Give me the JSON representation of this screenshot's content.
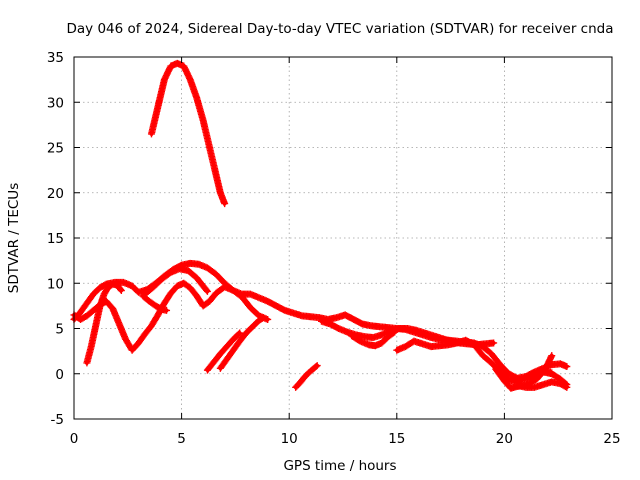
{
  "chart_data": {
    "type": "scatter",
    "title": "Day 046 of 2024, Sidereal Day-to-day VTEC variation (SDTVAR) for receiver cnda",
    "xlabel": "GPS time / hours",
    "ylabel": "SDTVAR / TECUs",
    "xlim": [
      0,
      25
    ],
    "ylim": [
      -5,
      35
    ],
    "xticks": [
      0,
      5,
      10,
      15,
      20,
      25
    ],
    "yticks": [
      -5,
      0,
      5,
      10,
      15,
      20,
      25,
      30,
      35
    ],
    "grid": true,
    "marker": "+",
    "color": "#ff0000",
    "series": [
      {
        "name": "arc-1",
        "points": [
          [
            3.6,
            26.5
          ],
          [
            3.8,
            28.5
          ],
          [
            4.0,
            30.5
          ],
          [
            4.2,
            32.5
          ],
          [
            4.5,
            34.0
          ],
          [
            4.8,
            34.3
          ],
          [
            5.1,
            34.0
          ],
          [
            5.4,
            32.5
          ],
          [
            5.7,
            30.5
          ],
          [
            6.0,
            28.0
          ],
          [
            6.3,
            25.0
          ],
          [
            6.6,
            22.0
          ],
          [
            6.8,
            20.0
          ],
          [
            7.0,
            18.8
          ]
        ]
      },
      {
        "name": "arc-2",
        "points": [
          [
            0.0,
            6.0
          ],
          [
            0.3,
            6.8
          ],
          [
            0.6,
            7.8
          ],
          [
            0.9,
            8.8
          ],
          [
            1.2,
            9.5
          ],
          [
            1.5,
            9.9
          ],
          [
            1.9,
            10.1
          ],
          [
            2.3,
            10.1
          ],
          [
            2.7,
            9.7
          ],
          [
            3.0,
            9.0
          ],
          [
            3.4,
            9.3
          ],
          [
            3.8,
            10.0
          ],
          [
            4.2,
            10.8
          ],
          [
            4.6,
            11.5
          ],
          [
            5.0,
            12.0
          ],
          [
            5.4,
            12.2
          ],
          [
            5.8,
            12.1
          ],
          [
            6.2,
            11.7
          ],
          [
            6.6,
            11.0
          ],
          [
            7.0,
            10.0
          ],
          [
            7.4,
            9.2
          ],
          [
            7.8,
            8.8
          ],
          [
            8.2,
            8.8
          ],
          [
            8.6,
            8.4
          ],
          [
            9.0,
            8.0
          ],
          [
            9.4,
            7.5
          ],
          [
            9.8,
            7.0
          ],
          [
            10.2,
            6.7
          ],
          [
            10.6,
            6.4
          ],
          [
            11.0,
            6.3
          ],
          [
            11.4,
            6.2
          ],
          [
            11.8,
            6.0
          ],
          [
            12.2,
            6.2
          ],
          [
            12.6,
            6.5
          ],
          [
            13.0,
            6.0
          ],
          [
            13.4,
            5.5
          ],
          [
            13.8,
            5.3
          ],
          [
            14.2,
            5.2
          ],
          [
            14.6,
            5.1
          ],
          [
            15.0,
            5.0
          ],
          [
            15.4,
            4.9
          ],
          [
            15.8,
            4.6
          ],
          [
            16.2,
            4.3
          ],
          [
            16.6,
            4.0
          ],
          [
            17.0,
            3.8
          ],
          [
            17.4,
            3.7
          ],
          [
            17.8,
            3.6
          ],
          [
            18.2,
            3.5
          ],
          [
            18.6,
            3.4
          ],
          [
            19.0,
            3.0
          ],
          [
            19.4,
            2.2
          ],
          [
            19.8,
            1.0
          ],
          [
            20.2,
            0.0
          ],
          [
            20.6,
            -0.5
          ],
          [
            21.0,
            -0.3
          ],
          [
            21.4,
            0.2
          ],
          [
            21.8,
            0.6
          ],
          [
            22.2,
            1.0
          ],
          [
            22.6,
            1.1
          ],
          [
            22.9,
            0.8
          ]
        ]
      },
      {
        "name": "arc-3",
        "points": [
          [
            0.0,
            6.5
          ],
          [
            0.3,
            6.0
          ],
          [
            0.6,
            6.4
          ],
          [
            0.9,
            7.0
          ],
          [
            1.2,
            7.6
          ],
          [
            1.5,
            8.0
          ],
          [
            1.8,
            7.2
          ],
          [
            2.1,
            5.5
          ],
          [
            2.4,
            3.8
          ],
          [
            2.7,
            2.6
          ],
          [
            3.0,
            3.4
          ],
          [
            3.3,
            4.4
          ],
          [
            3.6,
            5.3
          ],
          [
            3.9,
            6.5
          ],
          [
            4.2,
            7.8
          ],
          [
            4.5,
            8.9
          ],
          [
            4.8,
            9.7
          ],
          [
            5.1,
            10.0
          ],
          [
            5.4,
            9.5
          ],
          [
            5.7,
            8.6
          ],
          [
            6.0,
            7.5
          ],
          [
            6.3,
            8.0
          ],
          [
            6.6,
            8.9
          ],
          [
            7.0,
            9.6
          ],
          [
            7.4,
            9.2
          ],
          [
            7.8,
            8.5
          ],
          [
            8.2,
            7.3
          ],
          [
            8.6,
            6.4
          ],
          [
            9.0,
            6.0
          ]
        ]
      },
      {
        "name": "arc-4",
        "points": [
          [
            0.6,
            1.2
          ],
          [
            0.8,
            3.0
          ],
          [
            1.0,
            5.2
          ],
          [
            1.2,
            7.4
          ],
          [
            1.4,
            8.8
          ],
          [
            1.6,
            9.6
          ],
          [
            1.8,
            9.9
          ],
          [
            2.0,
            9.8
          ],
          [
            2.2,
            9.2
          ]
        ]
      },
      {
        "name": "arc-5",
        "points": [
          [
            3.3,
            8.8
          ],
          [
            3.7,
            9.6
          ],
          [
            4.1,
            10.5
          ],
          [
            4.5,
            11.2
          ],
          [
            4.9,
            11.6
          ],
          [
            5.3,
            11.4
          ],
          [
            5.7,
            10.6
          ],
          [
            6.0,
            9.7
          ],
          [
            6.2,
            9.1
          ]
        ]
      },
      {
        "name": "arc-6",
        "points": [
          [
            3.2,
            8.6
          ],
          [
            3.5,
            8.0
          ],
          [
            3.8,
            7.5
          ],
          [
            4.1,
            7.1
          ],
          [
            4.3,
            7.0
          ]
        ]
      },
      {
        "name": "arc-7",
        "points": [
          [
            6.2,
            0.4
          ],
          [
            6.5,
            1.3
          ],
          [
            6.8,
            2.2
          ],
          [
            7.1,
            3.0
          ],
          [
            7.4,
            3.8
          ],
          [
            7.7,
            4.5
          ]
        ]
      },
      {
        "name": "arc-8",
        "points": [
          [
            6.8,
            0.6
          ],
          [
            7.1,
            1.6
          ],
          [
            7.4,
            2.6
          ],
          [
            7.7,
            3.6
          ],
          [
            8.0,
            4.5
          ],
          [
            8.3,
            5.2
          ],
          [
            8.6,
            5.9
          ],
          [
            8.8,
            6.2
          ]
        ]
      },
      {
        "name": "arc-9",
        "points": [
          [
            10.3,
            -1.5
          ],
          [
            10.5,
            -1.0
          ],
          [
            10.7,
            -0.4
          ],
          [
            10.9,
            0.1
          ],
          [
            11.1,
            0.5
          ],
          [
            11.3,
            0.9
          ]
        ]
      },
      {
        "name": "arc-10",
        "points": [
          [
            11.5,
            5.8
          ],
          [
            11.9,
            5.5
          ],
          [
            12.3,
            5.0
          ],
          [
            12.7,
            4.6
          ],
          [
            13.1,
            4.3
          ],
          [
            13.5,
            4.1
          ],
          [
            13.9,
            4.0
          ],
          [
            14.3,
            4.3
          ],
          [
            14.7,
            4.7
          ],
          [
            15.1,
            5.0
          ],
          [
            15.5,
            5.0
          ],
          [
            15.9,
            4.8
          ],
          [
            16.3,
            4.5
          ],
          [
            16.7,
            4.2
          ],
          [
            17.1,
            3.9
          ],
          [
            17.5,
            3.6
          ],
          [
            17.9,
            3.4
          ],
          [
            18.3,
            3.3
          ],
          [
            18.7,
            3.2
          ],
          [
            19.1,
            3.3
          ],
          [
            19.5,
            3.4
          ]
        ]
      },
      {
        "name": "arc-11",
        "points": [
          [
            12.9,
            4.2
          ],
          [
            13.3,
            3.6
          ],
          [
            13.7,
            3.2
          ],
          [
            14.0,
            3.1
          ],
          [
            14.3,
            3.4
          ],
          [
            14.6,
            4.1
          ],
          [
            14.9,
            4.6
          ]
        ]
      },
      {
        "name": "arc-12",
        "points": [
          [
            15.0,
            2.6
          ],
          [
            15.4,
            3.0
          ],
          [
            15.8,
            3.6
          ],
          [
            16.2,
            3.3
          ],
          [
            16.6,
            3.0
          ],
          [
            17.0,
            3.1
          ],
          [
            17.4,
            3.2
          ],
          [
            17.8,
            3.4
          ],
          [
            18.2,
            3.7
          ],
          [
            18.6,
            3.2
          ],
          [
            19.0,
            2.0
          ],
          [
            19.4,
            1.2
          ],
          [
            19.8,
            0.2
          ],
          [
            20.2,
            -0.7
          ],
          [
            20.6,
            -0.9
          ],
          [
            21.0,
            -0.5
          ],
          [
            21.4,
            -0.1
          ],
          [
            21.8,
            0.3
          ],
          [
            22.2,
            0.1
          ]
        ]
      },
      {
        "name": "arc-13",
        "points": [
          [
            19.6,
            0.5
          ],
          [
            20.0,
            -0.8
          ],
          [
            20.3,
            -1.6
          ],
          [
            20.6,
            -1.4
          ],
          [
            20.9,
            -1.3
          ],
          [
            21.2,
            -1.0
          ],
          [
            21.5,
            -0.6
          ],
          [
            21.8,
            0.2
          ],
          [
            22.0,
            1.0
          ],
          [
            22.2,
            2.0
          ]
        ]
      },
      {
        "name": "arc-14",
        "points": [
          [
            20.6,
            -1.3
          ],
          [
            21.0,
            -1.5
          ],
          [
            21.4,
            -1.5
          ],
          [
            21.8,
            -1.2
          ],
          [
            22.2,
            -0.9
          ],
          [
            22.6,
            -1.1
          ],
          [
            22.9,
            -1.5
          ]
        ]
      },
      {
        "name": "arc-15",
        "points": [
          [
            21.0,
            -0.4
          ],
          [
            21.4,
            -0.2
          ],
          [
            21.8,
            0.2
          ],
          [
            22.2,
            0.0
          ],
          [
            22.6,
            -0.6
          ],
          [
            22.9,
            -1.2
          ]
        ]
      }
    ]
  }
}
